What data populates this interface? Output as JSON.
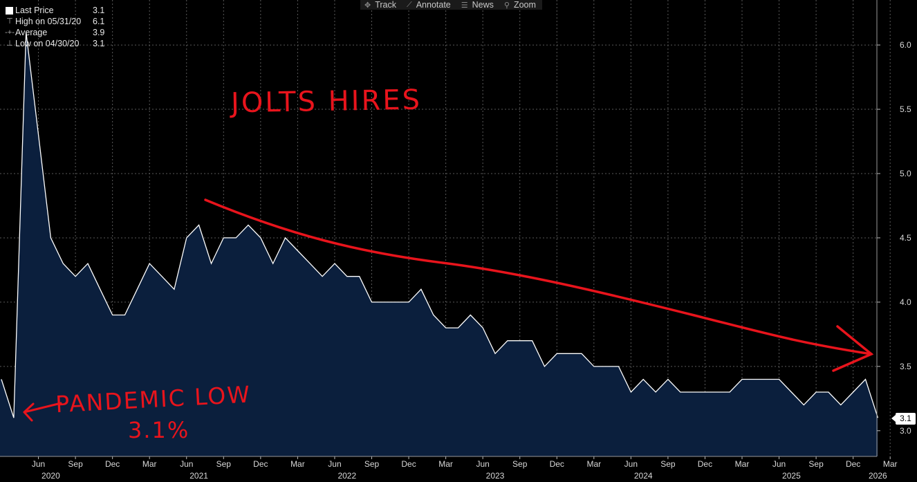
{
  "toolbar": {
    "items": [
      {
        "icon": "track-icon",
        "label": "Track"
      },
      {
        "icon": "annotate-icon",
        "label": "Annotate"
      },
      {
        "icon": "news-icon",
        "label": "News"
      },
      {
        "icon": "zoom-icon",
        "label": "Zoom"
      }
    ]
  },
  "legend": {
    "rows": [
      {
        "label": "Last Price",
        "value": "3.1"
      },
      {
        "label": "High on 05/31/20",
        "value": "6.1"
      },
      {
        "label": "Average",
        "value": "3.9"
      },
      {
        "label": "Low on 04/30/20",
        "value": "3.1"
      }
    ]
  },
  "last_value_badge": "3.1",
  "annotations": {
    "title": "JOLTS HIRES",
    "pandemic_label": "PANDEMIC LOW",
    "pandemic_value": "3.1%",
    "color": "#e8141c"
  },
  "colors": {
    "background": "#000000",
    "area_fill": "#0b1f3d",
    "line": "#ffffff",
    "grid": "#5a5a5a",
    "annotation": "#e8141c"
  },
  "chart_data": {
    "type": "area",
    "title": "",
    "xlabel": "",
    "ylabel": "",
    "ylim": [
      2.8,
      6.35
    ],
    "y_ticks": [
      "3.0",
      "3.5",
      "4.0",
      "4.5",
      "5.0",
      "5.5",
      "6.0"
    ],
    "x_month_ticks": [
      {
        "label": "Jun",
        "date": "2020-06"
      },
      {
        "label": "Sep",
        "date": "2020-09"
      },
      {
        "label": "Dec",
        "date": "2020-12"
      },
      {
        "label": "Mar",
        "date": "2021-03"
      },
      {
        "label": "Jun",
        "date": "2021-06"
      },
      {
        "label": "Sep",
        "date": "2021-09"
      },
      {
        "label": "Dec",
        "date": "2021-12"
      },
      {
        "label": "Mar",
        "date": "2022-03"
      },
      {
        "label": "Jun",
        "date": "2022-06"
      },
      {
        "label": "Sep",
        "date": "2022-09"
      },
      {
        "label": "Dec",
        "date": "2022-12"
      },
      {
        "label": "Mar",
        "date": "2023-03"
      },
      {
        "label": "Jun",
        "date": "2023-06"
      },
      {
        "label": "Sep",
        "date": "2023-09"
      },
      {
        "label": "Dec",
        "date": "2023-12"
      },
      {
        "label": "Mar",
        "date": "2024-03"
      },
      {
        "label": "Jun",
        "date": "2024-06"
      },
      {
        "label": "Sep",
        "date": "2024-09"
      },
      {
        "label": "Dec",
        "date": "2024-12"
      },
      {
        "label": "Mar",
        "date": "2025-03"
      },
      {
        "label": "Jun",
        "date": "2025-06"
      },
      {
        "label": "Sep",
        "date": "2025-09"
      },
      {
        "label": "Dec",
        "date": "2025-12"
      },
      {
        "label": "Mar",
        "date": "2026-03"
      }
    ],
    "x_year_ticks": [
      {
        "label": "2020",
        "date": "2020-07"
      },
      {
        "label": "2021",
        "date": "2021-07"
      },
      {
        "label": "2022",
        "date": "2022-07"
      },
      {
        "label": "2023",
        "date": "2023-07"
      },
      {
        "label": "2024",
        "date": "2024-07"
      },
      {
        "label": "2025",
        "date": "2025-07"
      },
      {
        "label": "2026",
        "date": "2026-02"
      }
    ],
    "series": [
      {
        "x": [
          "2020-03",
          "2020-04",
          "2020-05",
          "2020-06",
          "2020-07",
          "2020-08",
          "2020-09",
          "2020-10",
          "2020-11",
          "2020-12",
          "2021-01",
          "2021-02",
          "2021-03",
          "2021-04",
          "2021-05",
          "2021-06",
          "2021-07",
          "2021-08",
          "2021-09",
          "2021-10",
          "2021-11",
          "2021-12",
          "2022-01",
          "2022-02",
          "2022-03",
          "2022-04",
          "2022-05",
          "2022-06",
          "2022-07",
          "2022-08",
          "2022-09",
          "2022-10",
          "2022-11",
          "2022-12",
          "2023-01",
          "2023-02",
          "2023-03",
          "2023-04",
          "2023-05",
          "2023-06",
          "2023-07",
          "2023-08",
          "2023-09",
          "2023-10",
          "2023-11",
          "2023-12",
          "2024-01",
          "2024-02",
          "2024-03",
          "2024-04",
          "2024-05",
          "2024-06",
          "2024-07",
          "2024-08",
          "2024-09",
          "2024-10",
          "2024-11",
          "2024-12",
          "2025-01",
          "2025-02",
          "2025-03",
          "2025-04",
          "2025-05",
          "2025-06",
          "2025-07",
          "2025-08",
          "2025-09",
          "2025-10",
          "2025-11",
          "2025-12",
          "2026-01",
          "2026-02"
        ],
        "values": [
          3.4,
          3.1,
          6.1,
          5.3,
          4.5,
          4.3,
          4.2,
          4.3,
          4.1,
          3.9,
          3.9,
          4.1,
          4.3,
          4.2,
          4.1,
          4.5,
          4.6,
          4.3,
          4.5,
          4.5,
          4.6,
          4.5,
          4.3,
          4.5,
          4.4,
          4.3,
          4.2,
          4.3,
          4.2,
          4.2,
          4.0,
          4.0,
          4.0,
          4.0,
          4.1,
          3.9,
          3.8,
          3.8,
          3.9,
          3.8,
          3.6,
          3.7,
          3.7,
          3.7,
          3.5,
          3.6,
          3.6,
          3.6,
          3.5,
          3.5,
          3.5,
          3.3,
          3.4,
          3.3,
          3.4,
          3.3,
          3.3,
          3.3,
          3.3,
          3.3,
          3.4,
          3.4,
          3.4,
          3.4,
          3.3,
          3.2,
          3.3,
          3.3,
          3.2,
          3.3,
          3.4,
          3.1
        ]
      }
    ],
    "grid": true,
    "legend_placement": "top-left"
  }
}
